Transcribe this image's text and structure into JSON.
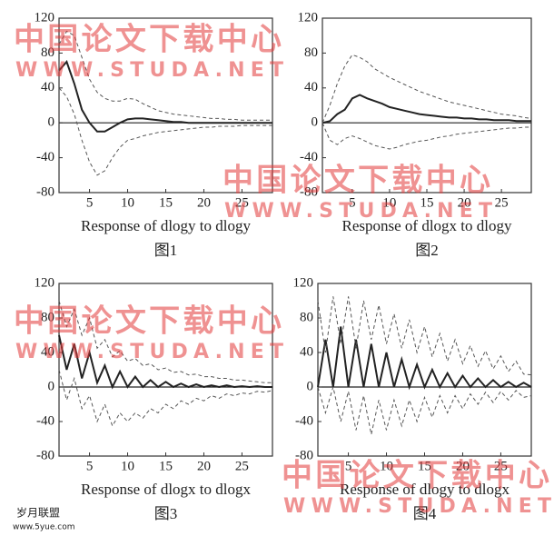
{
  "chart_data": [
    {
      "type": "line",
      "xlabel": "Response of dlogy to dlogy",
      "caption": "图1",
      "x": [
        1,
        2,
        3,
        4,
        5,
        6,
        7,
        8,
        9,
        10,
        11,
        12,
        13,
        14,
        15,
        16,
        17,
        18,
        19,
        20,
        21,
        22,
        23,
        24,
        25,
        26,
        27,
        28,
        29
      ],
      "xlim": [
        1,
        29
      ],
      "xticks": [
        5,
        10,
        15,
        20,
        25
      ],
      "ylim": [
        -80,
        120
      ],
      "yticks": [
        -80,
        -40,
        0,
        40,
        80,
        120
      ],
      "series": [
        {
          "color": "#222222",
          "dashed": false,
          "values": [
            60,
            70,
            45,
            15,
            0,
            -10,
            -10,
            -5,
            0,
            4,
            5,
            5,
            4,
            3,
            2,
            1,
            1,
            0,
            0,
            0,
            0,
            0,
            0,
            0,
            0,
            0,
            0,
            0,
            0
          ]
        },
        {
          "color": "#555555",
          "dashed": true,
          "values": [
            90,
            105,
            100,
            75,
            50,
            35,
            28,
            25,
            25,
            28,
            27,
            22,
            18,
            14,
            12,
            10,
            9,
            8,
            7,
            6,
            5,
            5,
            4,
            4,
            3,
            3,
            3,
            3,
            3
          ]
        },
        {
          "color": "#555555",
          "dashed": true,
          "values": [
            40,
            30,
            10,
            -20,
            -45,
            -60,
            -55,
            -40,
            -28,
            -20,
            -18,
            -15,
            -13,
            -11,
            -10,
            -9,
            -8,
            -7,
            -6,
            -5,
            -5,
            -4,
            -4,
            -4,
            -3,
            -3,
            -3,
            -3,
            -3
          ]
        }
      ]
    },
    {
      "type": "line",
      "xlabel": "Response of dlogx to dlogy",
      "caption": "图2",
      "x": [
        1,
        2,
        3,
        4,
        5,
        6,
        7,
        8,
        9,
        10,
        11,
        12,
        13,
        14,
        15,
        16,
        17,
        18,
        19,
        20,
        21,
        22,
        23,
        24,
        25,
        26,
        27,
        28,
        29
      ],
      "xlim": [
        1,
        29
      ],
      "xticks": [
        5,
        10,
        15,
        20,
        25
      ],
      "ylim": [
        -80,
        120
      ],
      "yticks": [
        -80,
        -40,
        0,
        40,
        80,
        120
      ],
      "series": [
        {
          "color": "#222222",
          "dashed": false,
          "values": [
            0,
            2,
            10,
            15,
            28,
            32,
            28,
            25,
            22,
            18,
            16,
            14,
            12,
            10,
            9,
            8,
            7,
            6,
            6,
            5,
            5,
            4,
            4,
            3,
            3,
            3,
            2,
            2,
            2
          ]
        },
        {
          "color": "#555555",
          "dashed": true,
          "values": [
            0,
            20,
            45,
            65,
            78,
            75,
            70,
            62,
            57,
            52,
            48,
            44,
            40,
            36,
            33,
            30,
            27,
            24,
            22,
            20,
            18,
            16,
            14,
            12,
            10,
            9,
            8,
            6,
            5
          ]
        },
        {
          "color": "#555555",
          "dashed": true,
          "values": [
            0,
            -20,
            -25,
            -18,
            -15,
            -18,
            -22,
            -26,
            -28,
            -30,
            -28,
            -25,
            -23,
            -21,
            -20,
            -18,
            -16,
            -15,
            -13,
            -12,
            -11,
            -10,
            -9,
            -8,
            -7,
            -6,
            -6,
            -5,
            -5
          ]
        }
      ]
    },
    {
      "type": "line",
      "xlabel": "Response of dlogx to dlogx",
      "caption": "图3",
      "x": [
        1,
        2,
        3,
        4,
        5,
        6,
        7,
        8,
        9,
        10,
        11,
        12,
        13,
        14,
        15,
        16,
        17,
        18,
        19,
        20,
        21,
        22,
        23,
        24,
        25,
        26,
        27,
        28,
        29
      ],
      "xlim": [
        1,
        29
      ],
      "xticks": [
        5,
        10,
        15,
        20,
        25
      ],
      "ylim": [
        -80,
        120
      ],
      "yticks": [
        -80,
        -40,
        0,
        40,
        80,
        120
      ],
      "series": [
        {
          "color": "#222222",
          "dashed": false,
          "values": [
            60,
            20,
            50,
            10,
            40,
            5,
            25,
            0,
            18,
            0,
            12,
            0,
            8,
            0,
            6,
            0,
            4,
            0,
            3,
            0,
            2,
            0,
            2,
            0,
            1,
            0,
            1,
            0,
            0
          ]
        },
        {
          "color": "#555555",
          "dashed": true,
          "values": [
            100,
            70,
            90,
            60,
            80,
            45,
            55,
            35,
            42,
            30,
            33,
            25,
            27,
            20,
            22,
            17,
            18,
            14,
            15,
            12,
            12,
            10,
            10,
            8,
            8,
            7,
            6,
            5,
            5
          ]
        },
        {
          "color": "#555555",
          "dashed": true,
          "values": [
            20,
            -15,
            10,
            -25,
            -10,
            -40,
            -20,
            -45,
            -30,
            -40,
            -30,
            -36,
            -25,
            -30,
            -20,
            -25,
            -16,
            -20,
            -13,
            -16,
            -10,
            -13,
            -8,
            -10,
            -7,
            -8,
            -5,
            -6,
            -4
          ]
        }
      ]
    },
    {
      "type": "line",
      "xlabel": "Response of dlogy to dlogx",
      "caption": "图4",
      "x": [
        1,
        2,
        3,
        4,
        5,
        6,
        7,
        8,
        9,
        10,
        11,
        12,
        13,
        14,
        15,
        16,
        17,
        18,
        19,
        20,
        21,
        22,
        23,
        24,
        25,
        26,
        27,
        28,
        29
      ],
      "xlim": [
        1,
        29
      ],
      "xticks": [
        5,
        10,
        15,
        20,
        25
      ],
      "ylim": [
        -80,
        120
      ],
      "yticks": [
        -80,
        -40,
        0,
        40,
        80,
        120
      ],
      "series": [
        {
          "color": "#222222",
          "dashed": false,
          "values": [
            0,
            55,
            0,
            70,
            0,
            55,
            0,
            50,
            0,
            40,
            0,
            32,
            0,
            26,
            0,
            20,
            0,
            16,
            0,
            13,
            0,
            10,
            0,
            8,
            0,
            6,
            0,
            5,
            0
          ]
        },
        {
          "color": "#555555",
          "dashed": true,
          "values": [
            100,
            40,
            105,
            50,
            105,
            45,
            100,
            55,
            95,
            50,
            85,
            45,
            78,
            40,
            70,
            35,
            62,
            30,
            55,
            27,
            48,
            24,
            42,
            21,
            36,
            18,
            30,
            15,
            14
          ]
        },
        {
          "color": "#555555",
          "dashed": true,
          "values": [
            0,
            -30,
            0,
            -40,
            -5,
            -50,
            -10,
            -55,
            -15,
            -50,
            -15,
            -45,
            -15,
            -40,
            -12,
            -35,
            -10,
            -30,
            -10,
            -25,
            -8,
            -20,
            -6,
            -18,
            -5,
            -15,
            -4,
            -12,
            -10
          ]
        }
      ]
    }
  ],
  "watermark": {
    "cn": "中国论文下载中心",
    "url": "WWW.STUDA.NET"
  },
  "logo": {
    "name": "岁月联盟",
    "url": "www.5yue.com"
  }
}
